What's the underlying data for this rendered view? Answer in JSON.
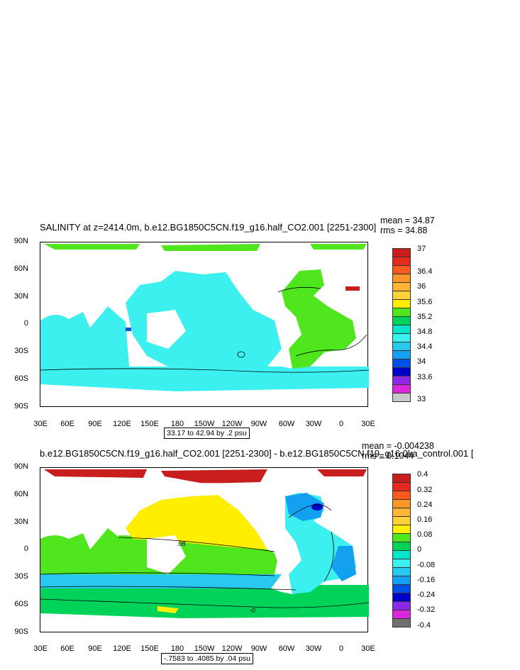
{
  "panels": [
    {
      "title": "SALINITY at z=2414.0m, b.e12.BG1850C5CN.f19_g16.half_CO2.001 [2251-2300]",
      "mean": "mean = 34.87",
      "rms": "rms = 34.88",
      "range": "33.17 to 42.94 by .2 psu",
      "colorbar_labels": [
        "37",
        "36.4",
        "36",
        "35.6",
        "35.2",
        "34.8",
        "34.4",
        "34",
        "33.6",
        "33"
      ],
      "colorbar_colors": [
        "#c81e1e",
        "#e62a1e",
        "#fa5a1e",
        "#ff9628",
        "#ffc83c",
        "#ffee00",
        "#50e61e",
        "#00d25a",
        "#00e6c8",
        "#3cf0f0",
        "#28c8f0",
        "#14a0f0",
        "#0050e6",
        "#0000c8",
        "#8c28e6",
        "#dc28dc",
        "#c8c8c8",
        "#707070"
      ],
      "contour_labels": []
    },
    {
      "title": "b.e12.BG1850C5CN.f19_g16.half_CO2.001 [2251-2300] - b.e12.BG1850C5CN.f19_g16.0ka_control.001 [",
      "mean": "mean = -0.004238",
      "rms": "rms = 0.1044",
      "range": "-.7583 to .4085 by .04 psu",
      "colorbar_labels": [
        "0.4",
        "0.32",
        "0.24",
        "0.16",
        "0.08",
        "0",
        "-0.08",
        "-0.16",
        "-0.24",
        "-0.32",
        "-0.4"
      ],
      "colorbar_colors": [
        "#c81e1e",
        "#e62a1e",
        "#fa5a1e",
        "#ff9628",
        "#ffb432",
        "#ffd23c",
        "#ffee00",
        "#50e61e",
        "#00d25a",
        "#00e6c8",
        "#3cf0f0",
        "#28c8f0",
        "#14a0f0",
        "#0050e6",
        "#0000c8",
        "#8c28e6",
        "#dc28dc",
        "#c8c8c8",
        "#707070"
      ],
      "contour_labels": [
        ".08",
        "-0"
      ]
    }
  ],
  "axes": {
    "lat_labels": [
      "90N",
      "60N",
      "30N",
      "0",
      "30S",
      "60S",
      "90S"
    ],
    "lon_labels": [
      "30E",
      "60E",
      "90E",
      "120E",
      "150E",
      "180",
      "150W",
      "120W",
      "90W",
      "60W",
      "30W",
      "0",
      "30E"
    ]
  },
  "colors": {
    "salinity_main": "#3cf0f0",
    "salinity_atlantic": "#50e61e",
    "diff_pacific": "#ffee00",
    "diff_arctic": "#c81e1e",
    "diff_south": "#00d25a",
    "diff_atlantic": "#14a0f0",
    "diff_indian": "#28c8f0"
  }
}
